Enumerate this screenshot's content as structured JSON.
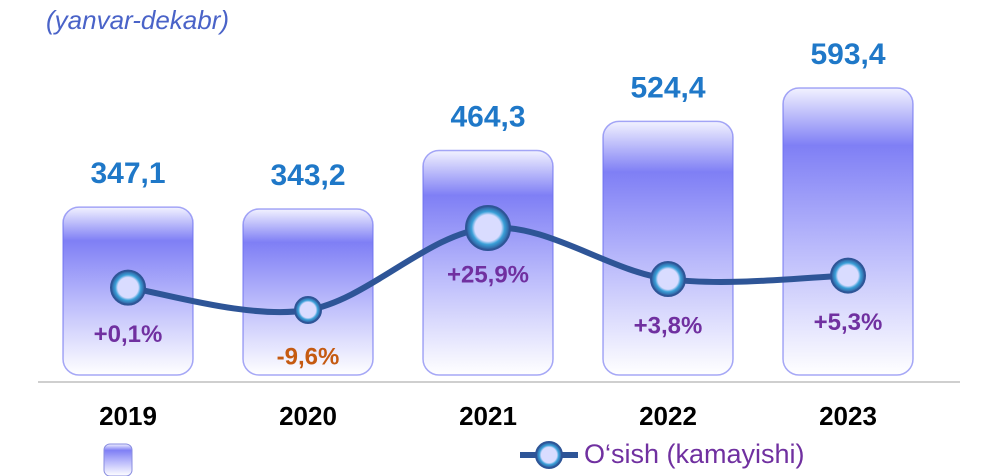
{
  "chart_data": {
    "type": "bar",
    "subtitle": "(yanvar-dekabr)",
    "categories": [
      "2019",
      "2020",
      "2021",
      "2022",
      "2023"
    ],
    "series": [
      {
        "type": "bar",
        "color": "#6b6ef0",
        "values": [
          347.1,
          343.2,
          464.3,
          524.4,
          593.4
        ],
        "value_labels": [
          "347,1",
          "343,2",
          "464,3",
          "524,4",
          "593,4"
        ]
      },
      {
        "type": "line",
        "name": "O‘sish (kamayishi)",
        "axis": "y2",
        "color": "#2e5597",
        "values": [
          0.1,
          -9.6,
          25.9,
          3.8,
          5.3
        ],
        "value_labels": [
          "+0,1%",
          "-9,6%",
          "+25,9%",
          "+3,8%",
          "+5,3%"
        ]
      }
    ],
    "value_label_color": "#1f78c8",
    "line_label_color": "#7030a0",
    "negative_label_color": "#c55a11"
  }
}
